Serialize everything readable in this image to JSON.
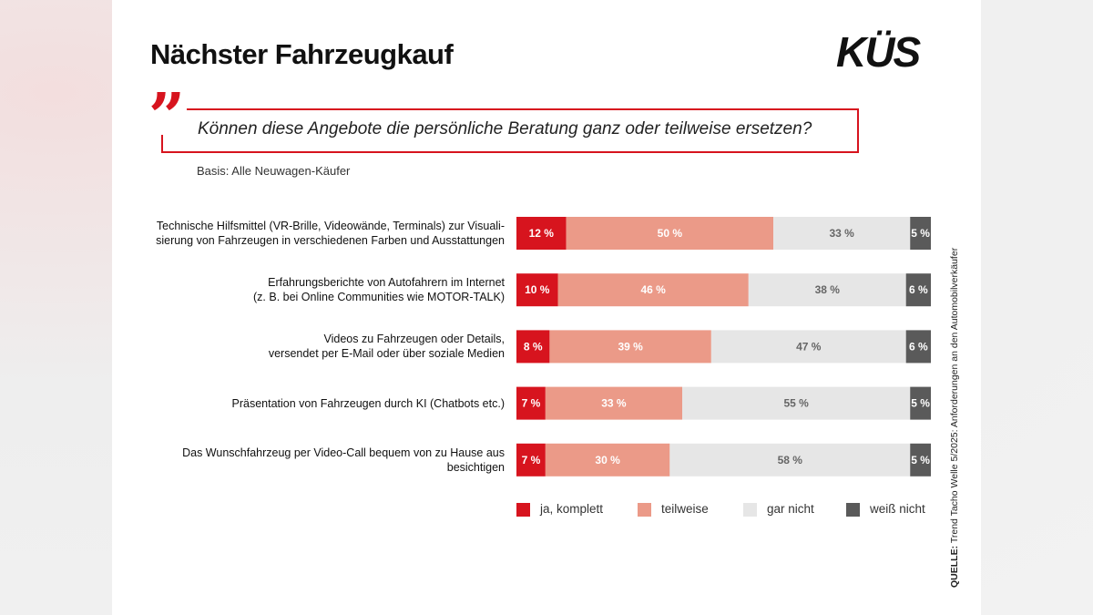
{
  "chart_data": {
    "type": "stacked-barh",
    "title": "Nächster Fahrzeugkauf",
    "logo": "KÜS",
    "question": "Können diese Angebote die persönliche Beratung ganz oder teilweise ersetzen?",
    "subtitle": "Basis: Alle Neuwagen-Käufer",
    "source_label": "QUELLE:",
    "source": "Trend Tacho Welle 5/2025: Anforderungen an den Automobilverkäufer",
    "categories": [
      "Technische Hilfsmittel (VR-Brille, Videowände, Terminals) zur Visuali-\nsierung von Fahrzeugen in verschiedenen Farben und Ausstattungen",
      "Erfahrungsberichte von Autofahrern im Internet\n(z. B. bei Online Communities wie MOTOR-TALK)",
      "Videos zu Fahrzeugen oder Details,\nversendet per E-Mail oder über soziale Medien",
      "Präsentation von Fahrzeugen durch KI (Chatbots etc.)",
      "Das Wunschfahrzeug per Video-Call bequem von zu Hause aus\nbesichtigen"
    ],
    "series": [
      {
        "name": "ja, komplett",
        "color": "#d7141e",
        "values": [
          12,
          10,
          8,
          7,
          7
        ],
        "value_labels": [
          "12 %",
          "10 %",
          "8 %",
          "7 %",
          "7 %"
        ]
      },
      {
        "name": "teilweise",
        "color": "#eb9a88",
        "values": [
          50,
          46,
          39,
          33,
          30
        ],
        "value_labels": [
          "50 %",
          "46 %",
          "39 %",
          "33 %",
          "30 %"
        ]
      },
      {
        "name": "gar nicht",
        "color": "#e6e6e6",
        "values": [
          33,
          38,
          47,
          55,
          58
        ],
        "value_labels": [
          "33 %",
          "38 %",
          "47 %",
          "55 %",
          "58 %"
        ]
      },
      {
        "name": "weiß nicht",
        "color": "#5a5a5a",
        "values": [
          5,
          6,
          6,
          5,
          5
        ],
        "value_labels": [
          "5 %",
          "6 %",
          "6 %",
          "5 %",
          "5 %"
        ]
      }
    ]
  }
}
